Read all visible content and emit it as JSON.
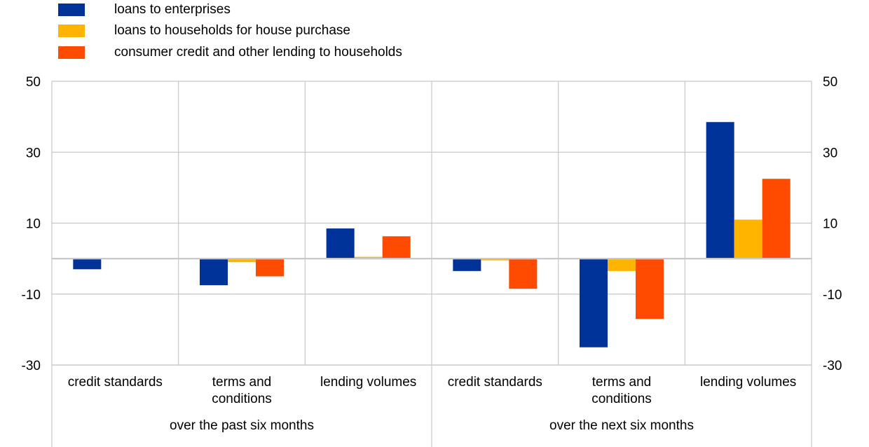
{
  "chart_data": {
    "type": "bar",
    "series": [
      {
        "name": "loans to enterprises",
        "color": "#003399",
        "values": [
          -3,
          -7.5,
          8.5,
          -3.5,
          -25,
          38.5
        ]
      },
      {
        "name": "loans to households for house purchase",
        "color": "#FFB400",
        "values": [
          0,
          -1,
          0.5,
          -0.5,
          -3.5,
          11
        ]
      },
      {
        "name": "consumer credit and other lending to households",
        "color": "#FF4B00",
        "values": [
          0,
          -5,
          6.3,
          -8.5,
          -17,
          22.5
        ]
      }
    ],
    "categories": [
      "credit standards",
      "terms and conditions",
      "lending volumes",
      "credit standards",
      "terms and conditions",
      "lending volumes"
    ],
    "groups": [
      {
        "label": "over the past six months",
        "span": 3
      },
      {
        "label": "over the next six months",
        "span": 3
      }
    ],
    "ylim": [
      -30,
      50
    ],
    "yticks": [
      50,
      30,
      10,
      -10,
      -30
    ],
    "ytick_labels": [
      "50",
      "30",
      "10",
      "-10",
      "-30"
    ],
    "title": "",
    "xlabel": "",
    "ylabel": "",
    "legend_position": "top-left"
  }
}
